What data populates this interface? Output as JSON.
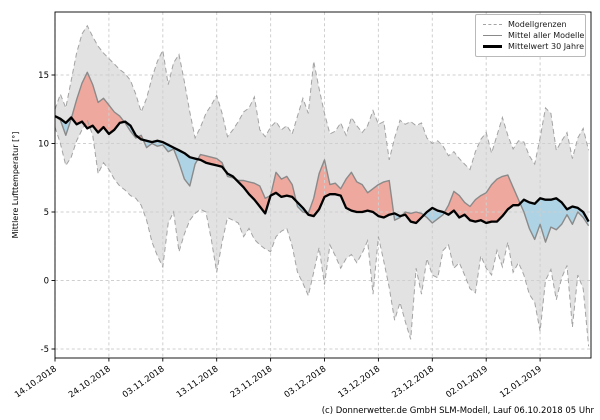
{
  "figure": {
    "y_axis_title": "Mittlere Lufttemperatur [°]",
    "legend": {
      "items": [
        {
          "label": "Modellgrenzen",
          "style": "dashed-gray"
        },
        {
          "label": "Mittel aller Modelle",
          "style": "solid-gray"
        },
        {
          "label": "Mittelwert 30 Jahre",
          "style": "solid-black-thick"
        }
      ]
    },
    "caption": "(c) Donnerwetter.de GmbH SLM-Modell, Lauf 06.10.2018 05 Uhr"
  },
  "chart_data": {
    "type": "line",
    "title": "",
    "xlabel": "",
    "ylabel": "Mittlere Lufttemperatur [°]",
    "x_unit": "Tage ab 14.10.2018, 1 Tag Schritt",
    "xticks_days": [
      0,
      10,
      20,
      30,
      40,
      50,
      60,
      70,
      80,
      90
    ],
    "xtick_labels": [
      "14.10.2018",
      "24.10.2018",
      "03.11.2018",
      "13.11.2018",
      "23.11.2018",
      "03.12.2018",
      "13.12.2018",
      "23.12.2018",
      "02.01.2019",
      "12.01.2019"
    ],
    "yticks": [
      15,
      10,
      5,
      0,
      -5
    ],
    "ylim": [
      -5.7,
      19.6
    ],
    "xlim_days": [
      0,
      99.4
    ],
    "grid": true,
    "legend_position": "upper right",
    "colors": {
      "band_fill": "#e2e2e2",
      "warm_fill": "#eea89e",
      "cold_fill": "#add3e4",
      "bound_line": "#a3a3a3",
      "mean_line": "#8a8a8a",
      "climate_line": "#000000",
      "grid_line": "#cfcfcf",
      "spine": "#000000"
    },
    "series": [
      {
        "name": "Modellgrenzen (obere Grenze)",
        "role": "upper_bound",
        "line": "dashed",
        "values": [
          12.5,
          13.6,
          12.6,
          14.6,
          16.6,
          18.0,
          18.6,
          17.8,
          17.1,
          16.6,
          16.2,
          15.8,
          15.4,
          15.1,
          14.6,
          13.6,
          12.3,
          13.3,
          14.8,
          16.0,
          16.8,
          14.3,
          15.9,
          16.5,
          14.5,
          12.3,
          10.4,
          11.2,
          12.2,
          12.8,
          13.5,
          12.2,
          10.5,
          11.0,
          11.6,
          12.3,
          12.6,
          13.4,
          11.0,
          10.5,
          11.2,
          11.6,
          11.0,
          11.3,
          10.7,
          12.0,
          13.3,
          12.2,
          16.0,
          14.0,
          12.2,
          10.7,
          10.9,
          11.5,
          10.6,
          11.9,
          11.3,
          10.8,
          11.3,
          12.4,
          11.4,
          11.6,
          8.8,
          10.4,
          11.7,
          11.4,
          11.6,
          11.3,
          11.5,
          10.4,
          10.0,
          10.2,
          9.8,
          9.1,
          9.4,
          8.9,
          8.5,
          8.1,
          9.4,
          10.3,
          10.8,
          9.3,
          10.6,
          11.9,
          10.6,
          9.6,
          10.2,
          10.1,
          9.1,
          8.5,
          10.4,
          12.6,
          12.2,
          9.5,
          10.2,
          10.8,
          8.9,
          10.4,
          11.1,
          9.5
        ]
      },
      {
        "name": "Modellgrenzen (untere Grenze)",
        "role": "lower_bound",
        "line": "dashed",
        "values": [
          11.2,
          10.0,
          8.4,
          9.0,
          10.2,
          11.0,
          11.7,
          10.6,
          7.8,
          8.6,
          8.1,
          7.4,
          6.9,
          6.6,
          6.2,
          6.0,
          5.5,
          4.4,
          2.8,
          1.8,
          1.0,
          4.2,
          5.0,
          2.1,
          3.4,
          4.4,
          4.9,
          5.2,
          5.0,
          3.0,
          0.6,
          2.8,
          4.6,
          4.4,
          4.2,
          3.2,
          3.8,
          3.0,
          2.6,
          2.3,
          2.1,
          3.2,
          3.6,
          3.8,
          2.5,
          0.6,
          -0.2,
          -1.1,
          0.6,
          2.4,
          -0.3,
          2.6,
          1.8,
          0.9,
          1.6,
          1.9,
          1.3,
          2.0,
          2.9,
          -1.0,
          3.2,
          1.4,
          -0.5,
          -2.9,
          -1.6,
          -3.0,
          -4.3,
          0.9,
          -1.0,
          1.6,
          0.4,
          0.2,
          2.2,
          2.6,
          0.9,
          1.3,
          0.4,
          -0.6,
          -0.9,
          1.8,
          0.9,
          0.4,
          2.2,
          1.0,
          2.8,
          0.6,
          1.3,
          0.4,
          -1.0,
          -1.6,
          -3.7,
          0.0,
          0.8,
          -1.4,
          0.2,
          1.1,
          -3.4,
          0.4,
          -0.6,
          -4.8
        ]
      },
      {
        "name": "Mittel aller Modelle",
        "role": "model_mean",
        "line": "solid",
        "values": [
          12.0,
          11.7,
          10.6,
          11.8,
          13.2,
          14.4,
          15.2,
          14.3,
          13.0,
          13.3,
          12.8,
          12.3,
          12.0,
          11.5,
          10.9,
          10.4,
          10.6,
          9.7,
          10.0,
          9.8,
          9.9,
          9.4,
          9.6,
          8.6,
          7.4,
          6.9,
          8.5,
          9.2,
          9.1,
          9.0,
          8.9,
          8.6,
          7.6,
          7.5,
          7.3,
          7.3,
          7.2,
          7.1,
          6.9,
          6.0,
          6.2,
          7.9,
          7.4,
          7.6,
          7.0,
          5.4,
          5.0,
          4.9,
          6.0,
          7.8,
          8.8,
          7.0,
          7.1,
          6.7,
          7.4,
          7.9,
          7.2,
          7.0,
          6.4,
          6.7,
          7.0,
          7.2,
          7.3,
          4.4,
          4.6,
          5.0,
          4.9,
          5.0,
          4.9,
          4.6,
          4.2,
          4.5,
          4.8,
          5.5,
          6.5,
          6.2,
          5.7,
          5.4,
          5.9,
          6.2,
          6.4,
          7.0,
          7.4,
          7.6,
          7.7,
          6.8,
          5.9,
          5.0,
          3.8,
          3.0,
          4.1,
          2.8,
          3.9,
          3.7,
          4.1,
          4.8,
          4.1,
          5.0,
          4.6,
          4.0
        ]
      },
      {
        "name": "Mittelwert 30 Jahre",
        "role": "climate_mean",
        "line": "solid-thick",
        "values": [
          12.0,
          11.8,
          11.5,
          11.9,
          11.4,
          11.6,
          11.1,
          11.3,
          10.8,
          11.2,
          10.7,
          11.0,
          11.5,
          11.6,
          11.3,
          10.6,
          10.3,
          10.2,
          10.1,
          10.2,
          10.1,
          9.9,
          9.7,
          9.5,
          9.3,
          9.0,
          8.9,
          8.8,
          8.6,
          8.5,
          8.4,
          8.3,
          7.8,
          7.6,
          7.2,
          6.8,
          6.3,
          5.9,
          5.4,
          4.9,
          6.2,
          6.4,
          6.1,
          6.2,
          6.1,
          5.7,
          5.3,
          4.8,
          4.7,
          5.2,
          6.1,
          6.3,
          6.3,
          6.2,
          5.3,
          5.1,
          5.0,
          5.0,
          5.1,
          5.0,
          4.7,
          4.6,
          4.8,
          4.9,
          4.7,
          4.8,
          4.3,
          4.2,
          4.6,
          5.0,
          5.3,
          5.1,
          5.0,
          4.8,
          5.1,
          4.6,
          4.8,
          4.4,
          4.3,
          4.4,
          4.2,
          4.3,
          4.3,
          4.7,
          5.2,
          5.5,
          5.5,
          5.9,
          5.7,
          5.6,
          6.0,
          5.9,
          5.9,
          6.0,
          5.7,
          5.2,
          5.4,
          5.3,
          5.0,
          4.3
        ]
      }
    ],
    "fills": [
      {
        "name": "Modellgrenzen-Band",
        "between": [
          "upper_bound",
          "lower_bound"
        ],
        "color_key": "band_fill"
      },
      {
        "name": "waermer als 30-Jahre-Mittel",
        "between": [
          "model_mean",
          "climate_mean"
        ],
        "when": "above",
        "color_key": "warm_fill"
      },
      {
        "name": "kaelter als 30-Jahre-Mittel",
        "between": [
          "model_mean",
          "climate_mean"
        ],
        "when": "below",
        "color_key": "cold_fill"
      }
    ]
  }
}
